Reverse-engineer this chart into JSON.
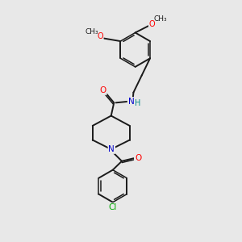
{
  "bg_color": "#e8e8e8",
  "bond_color": "#1a1a1a",
  "atom_colors": {
    "O": "#ff0000",
    "N": "#0000cc",
    "Cl": "#00aa00",
    "H": "#008888",
    "C": "#1a1a1a"
  },
  "figsize": [
    3.0,
    3.0
  ],
  "dpi": 100
}
